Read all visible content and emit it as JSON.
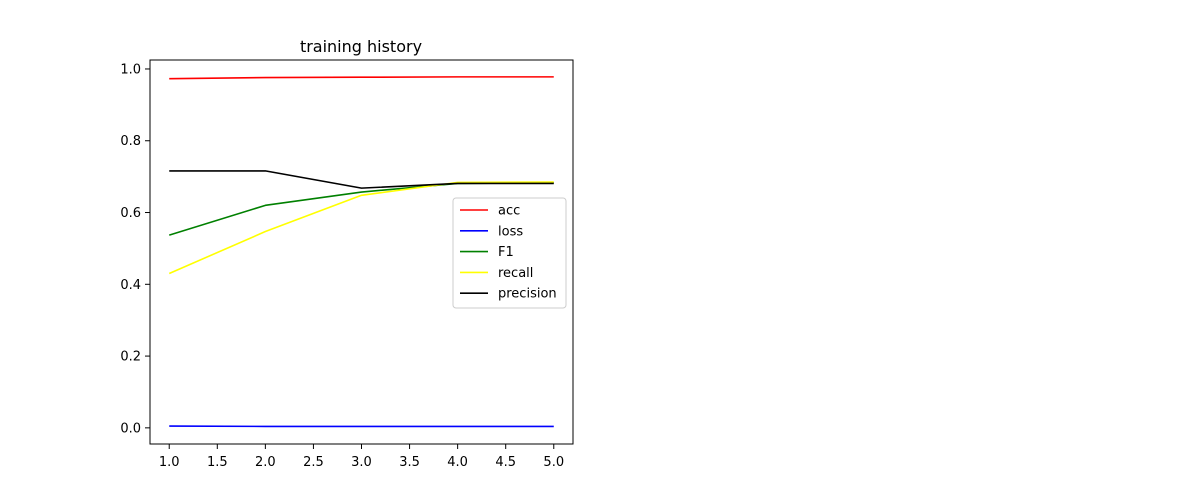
{
  "chart_data": {
    "type": "line",
    "title": "training history",
    "xlabel": "",
    "ylabel": "",
    "x": [
      1,
      2,
      3,
      4,
      5
    ],
    "xlim": [
      0.8,
      5.2
    ],
    "ylim": [
      -0.045,
      1.025
    ],
    "xticks": [
      "1.0",
      "1.5",
      "2.0",
      "2.5",
      "3.0",
      "3.5",
      "4.0",
      "4.5",
      "5.0"
    ],
    "yticks": [
      "0.0",
      "0.2",
      "0.4",
      "0.6",
      "0.8",
      "1.0"
    ],
    "grid": false,
    "legend_position": "center-right",
    "series": [
      {
        "name": "acc",
        "color": "#ff0000",
        "values": [
          0.973,
          0.976,
          0.977,
          0.978,
          0.978
        ]
      },
      {
        "name": "loss",
        "color": "#0000ff",
        "values": [
          0.005,
          0.004,
          0.004,
          0.004,
          0.004
        ]
      },
      {
        "name": "F1",
        "color": "#008000",
        "values": [
          0.537,
          0.62,
          0.657,
          0.681,
          0.683
        ]
      },
      {
        "name": "recall",
        "color": "#ffff00",
        "values": [
          0.43,
          0.547,
          0.648,
          0.684,
          0.685
        ]
      },
      {
        "name": "precision",
        "color": "#000000",
        "values": [
          0.716,
          0.716,
          0.668,
          0.681,
          0.681
        ]
      }
    ]
  }
}
